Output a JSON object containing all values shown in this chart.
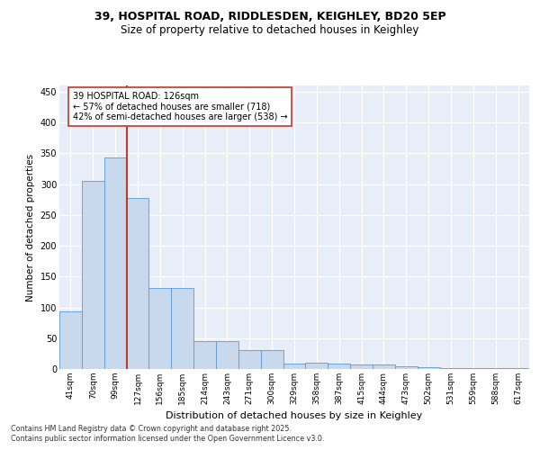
{
  "title1": "39, HOSPITAL ROAD, RIDDLESDEN, KEIGHLEY, BD20 5EP",
  "title2": "Size of property relative to detached houses in Keighley",
  "xlabel": "Distribution of detached houses by size in Keighley",
  "ylabel": "Number of detached properties",
  "categories": [
    "41sqm",
    "70sqm",
    "99sqm",
    "127sqm",
    "156sqm",
    "185sqm",
    "214sqm",
    "243sqm",
    "271sqm",
    "300sqm",
    "329sqm",
    "358sqm",
    "387sqm",
    "415sqm",
    "444sqm",
    "473sqm",
    "502sqm",
    "531sqm",
    "559sqm",
    "588sqm",
    "617sqm"
  ],
  "values": [
    93,
    305,
    343,
    278,
    132,
    132,
    46,
    46,
    30,
    30,
    9,
    10,
    9,
    7,
    7,
    4,
    3,
    2,
    1,
    1,
    2
  ],
  "bar_color": "#c9d9ed",
  "bar_edge_color": "#5b9bd5",
  "vline_color": "#c0392b",
  "annotation_text": "39 HOSPITAL ROAD: 126sqm\n← 57% of detached houses are smaller (718)\n42% of semi-detached houses are larger (538) →",
  "annotation_box_color": "#ffffff",
  "annotation_box_edge": "#c0392b",
  "ylim": [
    0,
    460
  ],
  "yticks": [
    0,
    50,
    100,
    150,
    200,
    250,
    300,
    350,
    400,
    450
  ],
  "footer1": "Contains HM Land Registry data © Crown copyright and database right 2025.",
  "footer2": "Contains public sector information licensed under the Open Government Licence v3.0.",
  "bg_color": "#e8eef8",
  "title_fontsize": 9,
  "subtitle_fontsize": 8.5
}
